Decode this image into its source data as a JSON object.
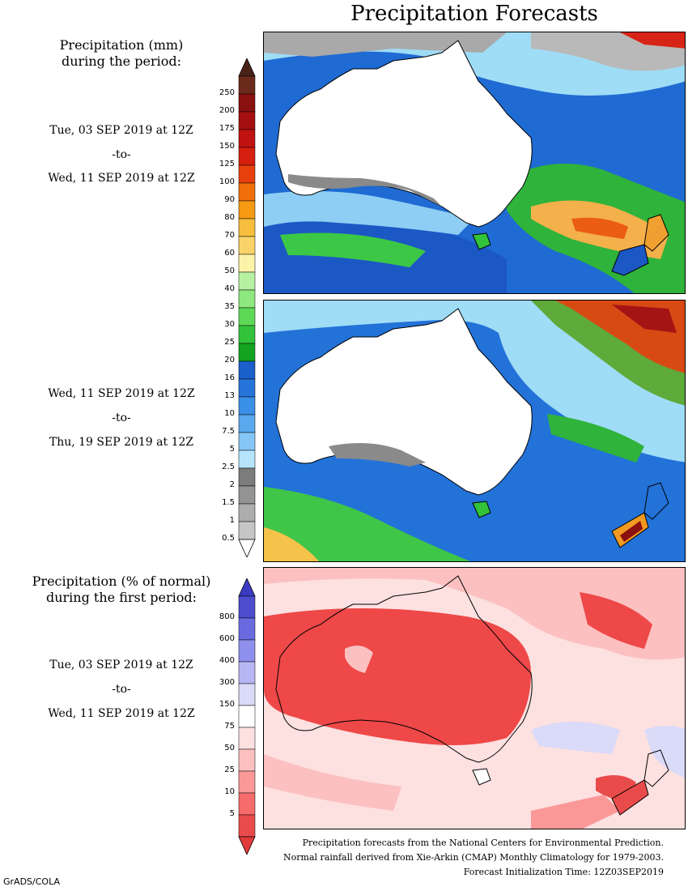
{
  "title": "Precipitation Forecasts",
  "left_panel": {
    "precip_heading_1": "Precipitation (mm)",
    "precip_heading_2": "during the period:",
    "period1": {
      "start": "Tue, 03 SEP 2019 at 12Z",
      "sep": "-to-",
      "end": "Wed, 11 SEP 2019 at 12Z"
    },
    "period2": {
      "start": "Wed, 11 SEP 2019 at 12Z",
      "sep": "-to-",
      "end": "Thu, 19 SEP 2019 at 12Z"
    },
    "pct_heading_1": "Precipitation (% of normal)",
    "pct_heading_2": "during the first period:",
    "period3": {
      "start": "Tue, 03 SEP 2019 at 12Z",
      "sep": "-to-",
      "end": "Wed, 11 SEP 2019 at 12Z"
    }
  },
  "mm_colorbar": {
    "labels": [
      "250",
      "200",
      "175",
      "150",
      "125",
      "100",
      "90",
      "80",
      "70",
      "60",
      "50",
      "40",
      "35",
      "30",
      "25",
      "20",
      "16",
      "13",
      "10",
      "7.5",
      "5",
      "2.5",
      "2",
      "1.5",
      "1",
      "0.5"
    ],
    "colors": [
      "#6b2a1a",
      "#8b1010",
      "#a50f0f",
      "#c11212",
      "#d61f0e",
      "#e8400c",
      "#f06f0a",
      "#f59a12",
      "#f7bd3d",
      "#f9d36a",
      "#fdf3a8",
      "#b8f0a2",
      "#8fe780",
      "#5ed956",
      "#33c33a",
      "#14a31f",
      "#1b5fcb",
      "#2574d9",
      "#3a8fe6",
      "#5aa8ee",
      "#86c6f5",
      "#b5e4fb",
      "#7c7c7c",
      "#949494",
      "#adadad",
      "#c6c6c6"
    ],
    "top_arrow": "#4a2218",
    "bottom_arrow": "#ffffff"
  },
  "pct_colorbar": {
    "labels": [
      "800",
      "600",
      "400",
      "300",
      "150",
      "75",
      "50",
      "25",
      "10",
      "5"
    ],
    "colors": [
      "#4d4dd0",
      "#6a6ae0",
      "#8f8fee",
      "#b7b7f4",
      "#dadaf9",
      "#ffffff",
      "#fde0e0",
      "#fcc0c0",
      "#fa9898",
      "#f66b6b",
      "#e94b4b"
    ],
    "top_arrow": "#3b3bc4",
    "bottom_arrow": "#e23a3a"
  },
  "footer": {
    "line1": "Precipitation forecasts from the National Centers for Environmental Prediction.",
    "line2": "Normal rainfall derived from Xie-Arkin (CMAP) Monthly Climatology for 1979-2003.",
    "line3": "Forecast Initialization Time: 12Z03SEP2019"
  },
  "credit": "GrADS/COLA"
}
